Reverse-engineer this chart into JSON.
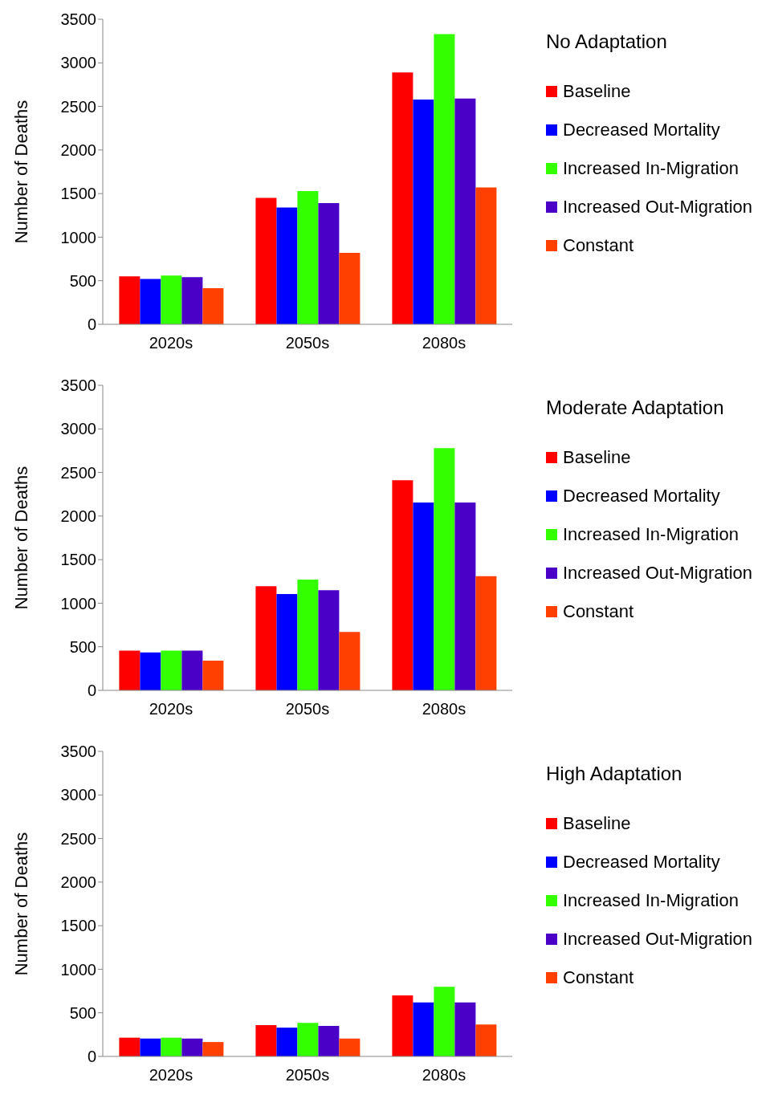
{
  "chart_data": [
    {
      "type": "bar",
      "ylabel": "Number of Deaths",
      "legend_title": "No Adaptation",
      "legend": "right",
      "categories": [
        "2020s",
        "2050s",
        "2080s"
      ],
      "ylim": [
        0,
        3500
      ],
      "yticks": [
        0,
        500,
        1000,
        1500,
        2000,
        2500,
        3000,
        3500
      ],
      "series": [
        {
          "name": "Baseline",
          "color": "#ff0000",
          "values": [
            550,
            1450,
            2890
          ]
        },
        {
          "name": "Decreased Mortality",
          "color": "#0000ff",
          "values": [
            520,
            1340,
            2580
          ]
        },
        {
          "name": "Increased In-Migration",
          "color": "#33ff00",
          "values": [
            560,
            1530,
            3330
          ]
        },
        {
          "name": "Increased Out-Migration",
          "color": "#4b00c8",
          "values": [
            540,
            1390,
            2590
          ]
        },
        {
          "name": "Constant",
          "color": "#ff4000",
          "values": [
            415,
            820,
            1570
          ]
        }
      ]
    },
    {
      "type": "bar",
      "ylabel": "Number of Deaths",
      "legend_title": "Moderate Adaptation",
      "legend": "right",
      "categories": [
        "2020s",
        "2050s",
        "2080s"
      ],
      "ylim": [
        0,
        3500
      ],
      "yticks": [
        0,
        500,
        1000,
        1500,
        2000,
        2500,
        3000,
        3500
      ],
      "series": [
        {
          "name": "Baseline",
          "color": "#ff0000",
          "values": [
            455,
            1195,
            2410
          ]
        },
        {
          "name": "Decreased Mortality",
          "color": "#0000ff",
          "values": [
            435,
            1105,
            2155
          ]
        },
        {
          "name": "Increased In-Migration",
          "color": "#33ff00",
          "values": [
            455,
            1270,
            2780
          ]
        },
        {
          "name": "Increased Out-Migration",
          "color": "#4b00c8",
          "values": [
            455,
            1150,
            2155
          ]
        },
        {
          "name": "Constant",
          "color": "#ff4000",
          "values": [
            340,
            670,
            1310
          ]
        }
      ]
    },
    {
      "type": "bar",
      "ylabel": "Number of Deaths",
      "legend_title": "High Adaptation",
      "legend": "right",
      "categories": [
        "2020s",
        "2050s",
        "2080s"
      ],
      "ylim": [
        0,
        3500
      ],
      "yticks": [
        0,
        500,
        1000,
        1500,
        2000,
        2500,
        3000,
        3500
      ],
      "series": [
        {
          "name": "Baseline",
          "color": "#ff0000",
          "values": [
            215,
            360,
            700
          ]
        },
        {
          "name": "Decreased Mortality",
          "color": "#0000ff",
          "values": [
            205,
            330,
            620
          ]
        },
        {
          "name": "Increased In-Migration",
          "color": "#33ff00",
          "values": [
            215,
            385,
            800
          ]
        },
        {
          "name": "Increased Out-Migration",
          "color": "#4b00c8",
          "values": [
            205,
            350,
            620
          ]
        },
        {
          "name": "Constant",
          "color": "#ff4000",
          "values": [
            165,
            205,
            365
          ]
        }
      ]
    }
  ]
}
